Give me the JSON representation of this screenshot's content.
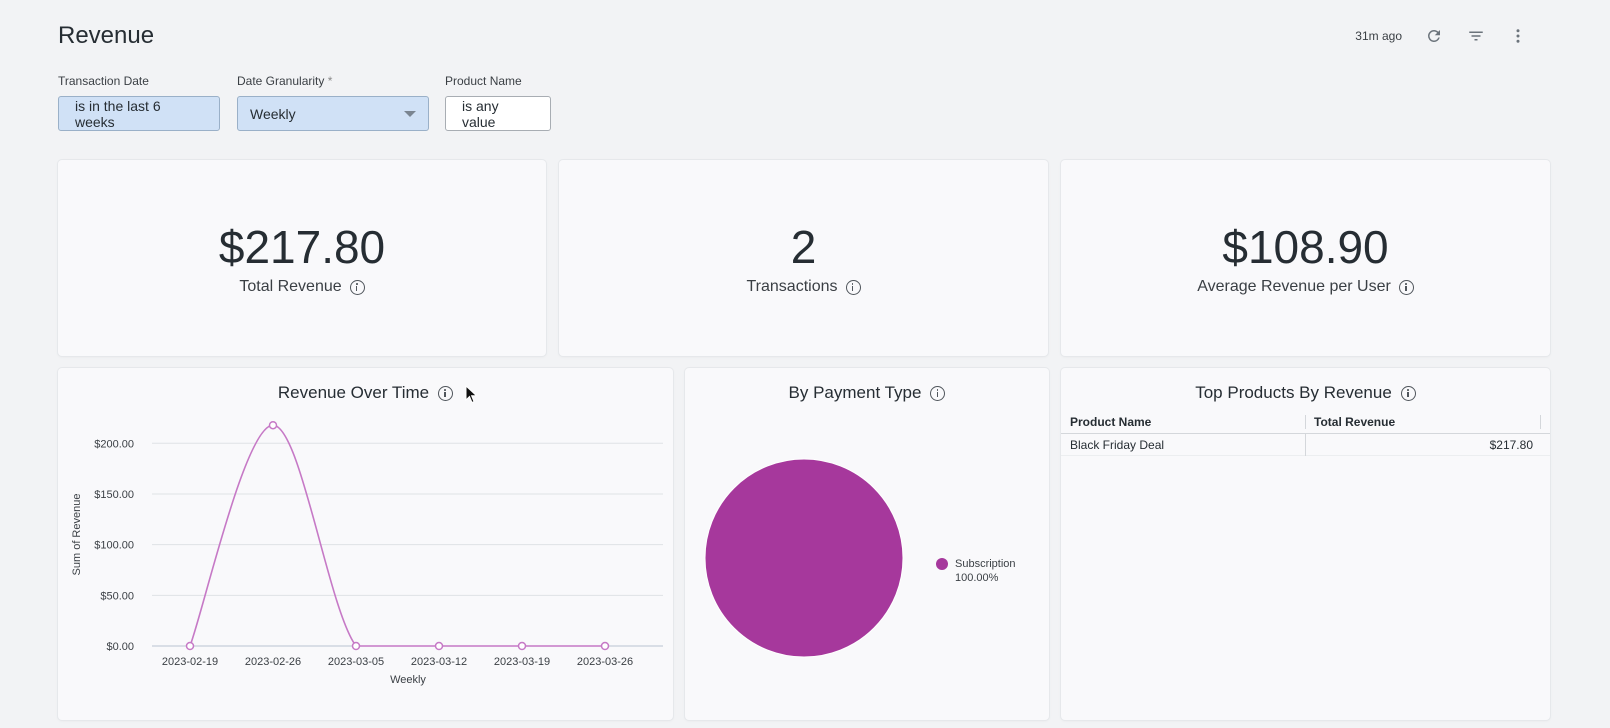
{
  "page": {
    "title": "Revenue"
  },
  "header": {
    "updated": "31m ago",
    "icons": [
      "refresh-icon",
      "filter-icon",
      "more-vert-icon"
    ]
  },
  "filters": [
    {
      "label": "Transaction Date",
      "value": "is in the last 6 weeks"
    },
    {
      "label": "Date Granularity",
      "required_mark": "*",
      "value": "Weekly"
    },
    {
      "label": "Product Name",
      "value": "is any value"
    }
  ],
  "kpis": [
    {
      "value": "$217.80",
      "label": "Total Revenue"
    },
    {
      "value": "2",
      "label": "Transactions"
    },
    {
      "value": "$108.90",
      "label": "Average Revenue per User"
    }
  ],
  "panels": {
    "revenue_over_time": {
      "title": "Revenue Over Time"
    },
    "by_payment_type": {
      "title": "By Payment Type"
    },
    "top_products": {
      "title": "Top Products By Revenue"
    }
  },
  "table": {
    "columns": [
      "Product Name",
      "Total Revenue"
    ],
    "rows": [
      [
        "Black Friday Deal",
        "$217.80"
      ]
    ]
  },
  "colors": {
    "line": "#c679c6",
    "pie": "#a6389c",
    "filter_active": "#d0e1f6"
  },
  "chart_data": [
    {
      "type": "line",
      "title": "Revenue Over Time",
      "xlabel": "Weekly",
      "ylabel": "Sum of Revenue",
      "x": [
        "2023-02-19",
        "2023-02-26",
        "2023-03-05",
        "2023-03-12",
        "2023-03-19",
        "2023-03-26"
      ],
      "series": [
        {
          "values": [
            0,
            217.8,
            0,
            0,
            0,
            0
          ]
        }
      ],
      "ylim": [
        0,
        220
      ],
      "yticks": [
        0,
        50,
        100,
        150,
        200
      ],
      "ytick_labels": [
        "$0.00",
        "$50.00",
        "$100.00",
        "$150.00",
        "$200.00"
      ],
      "grid": true,
      "smooth": true
    },
    {
      "type": "pie",
      "title": "By Payment Type",
      "slices": [
        {
          "label": "Subscription",
          "value": 100.0,
          "percent_label": "100.00%"
        }
      ],
      "legend": "right"
    }
  ]
}
